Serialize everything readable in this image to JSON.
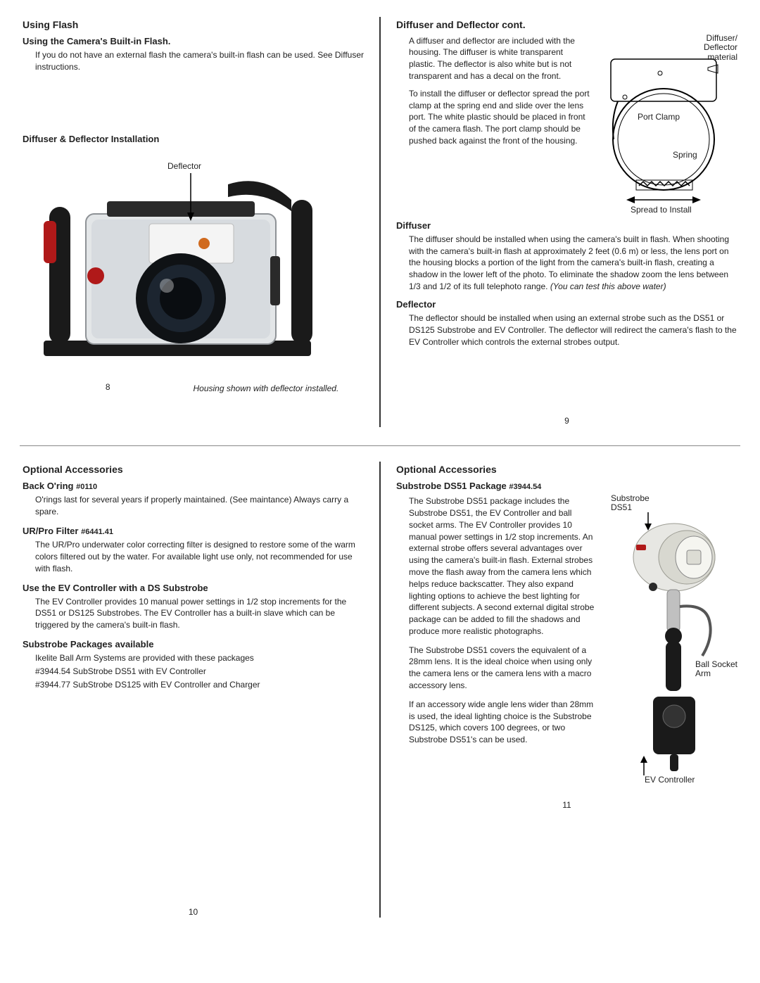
{
  "p8": {
    "h_flash": "Using Flash",
    "h_builtin": "Using the Camera's Built-in Flash.",
    "builtin_body": "If you do not have an external flash the camera's built-in flash can be used. See Diffuser instructions.",
    "h_install": "Diffuser & Deflector Installation",
    "defl_label": "Deflector",
    "caption": "Housing shown with deflector installed.",
    "pgnum": "8"
  },
  "p9": {
    "h_cont": "Diffuser and Deflector cont.",
    "para1": "A diffuser and deflector are included with the housing. The diffuser is white transparent plastic. The deflector is also white but is not transparent and has a decal on the front.",
    "para2": "To install the diffuser or deflector spread the port clamp at the spring end and slide over the lens port. The white plastic should be placed in front of the camera flash. The port clamp should be pushed back against the front of the housing.",
    "h_diff": "Diffuser",
    "diff_body": "The diffuser should be installed when using the camera's built in flash. When shooting with the camera's built-in flash at approximately 2 feet (0.6 m) or less, the lens port on the housing blocks a portion of the light from the camera's built-in flash, creating a shadow in the lower left of the photo. To eliminate the shadow zoom the lens between 1/3 and 1/2 of its full telephoto range.",
    "diff_tail": " (You can test this above water)",
    "h_defl": "Deflector",
    "defl_body": "The deflector should be installed when using an external strobe such as the DS51 or DS125 Substrobe and EV Controller. The deflector will redirect the camera's flash to the EV Controller which controls the external strobes output.",
    "pgnum": "9",
    "diag": {
      "diffuser_mat": "Diffuser/\nDeflector\nmaterial",
      "port_clamp": "Port Clamp",
      "spring": "Spring",
      "spread": "Spread to Install"
    }
  },
  "p10": {
    "h_opt": "Optional Accessories",
    "h_oring": "Back O'ring",
    "oring_pn": "#0110",
    "oring_body": "O'rings last for several years if properly maintained. (See maintance) Always carry a spare.",
    "h_filter": "UR/Pro Filter",
    "filter_pn": "#6441.41",
    "filter_body": "The UR/Pro underwater color correcting filter is designed to restore some of the warm colors filtered out by the water. For available light use only, not recommended for use with flash.",
    "h_ev": "Use the EV Controller with a DS Substrobe",
    "ev_body": "The EV Controller provides 10 manual power settings in 1/2 stop increments for the DS51 or DS125 Substrobes. The EV Controller has a built-in slave which can be triggered by the camera's built-in flash.",
    "h_pkg": "Substrobe Packages available",
    "pkg_intro": "Ikelite Ball Arm Systems are provided with these packages",
    "pkg1": "#3944.54 SubStrobe DS51 with EV Controller",
    "pkg2": "#3944.77 SubStrobe DS125 with EV Controller and Charger",
    "pgnum": "10"
  },
  "p11": {
    "h_opt": "Optional Accessories",
    "h_ds51": "Substrobe DS51 Package",
    "ds51_pn": "#3944.54",
    "para1": "The Substrobe DS51 package includes the Substrobe DS51, the EV Controller and ball socket arms. The EV Controller provides 10 manual power settings in 1/2 stop increments. An external strobe offers several advantages over using the camera's built-in flash. External strobes move the flash away from the camera lens which helps reduce backscatter. They also expand lighting options to achieve the best lighting for different subjects. A second external digital strobe package can be added to fill the shadows and produce more realistic photographs.",
    "para2": "The Substrobe DS51 covers the equivalent of a 28mm lens. It is the ideal choice when using only the camera lens or the camera lens with a macro accessory lens.",
    "para3": "If an accessory wide angle lens wider than 28mm is used, the ideal lighting choice is the Substrobe DS125, which covers 100 degrees, or two Substrobe DS51's can be used.",
    "pgnum": "11",
    "fig": {
      "ds51": "Substrobe\nDS51",
      "ball": "Ball Socket\nArm",
      "evc": "EV Controller"
    }
  },
  "colors": {
    "rule": "#333333",
    "strobe_body": "#e7e7e3",
    "strobe_shadow": "#b8b8b0",
    "red": "#b01919",
    "black": "#151515",
    "metal": "#7a7a7a",
    "housing_body": "#dedfe1",
    "lens": "#0f1215"
  }
}
